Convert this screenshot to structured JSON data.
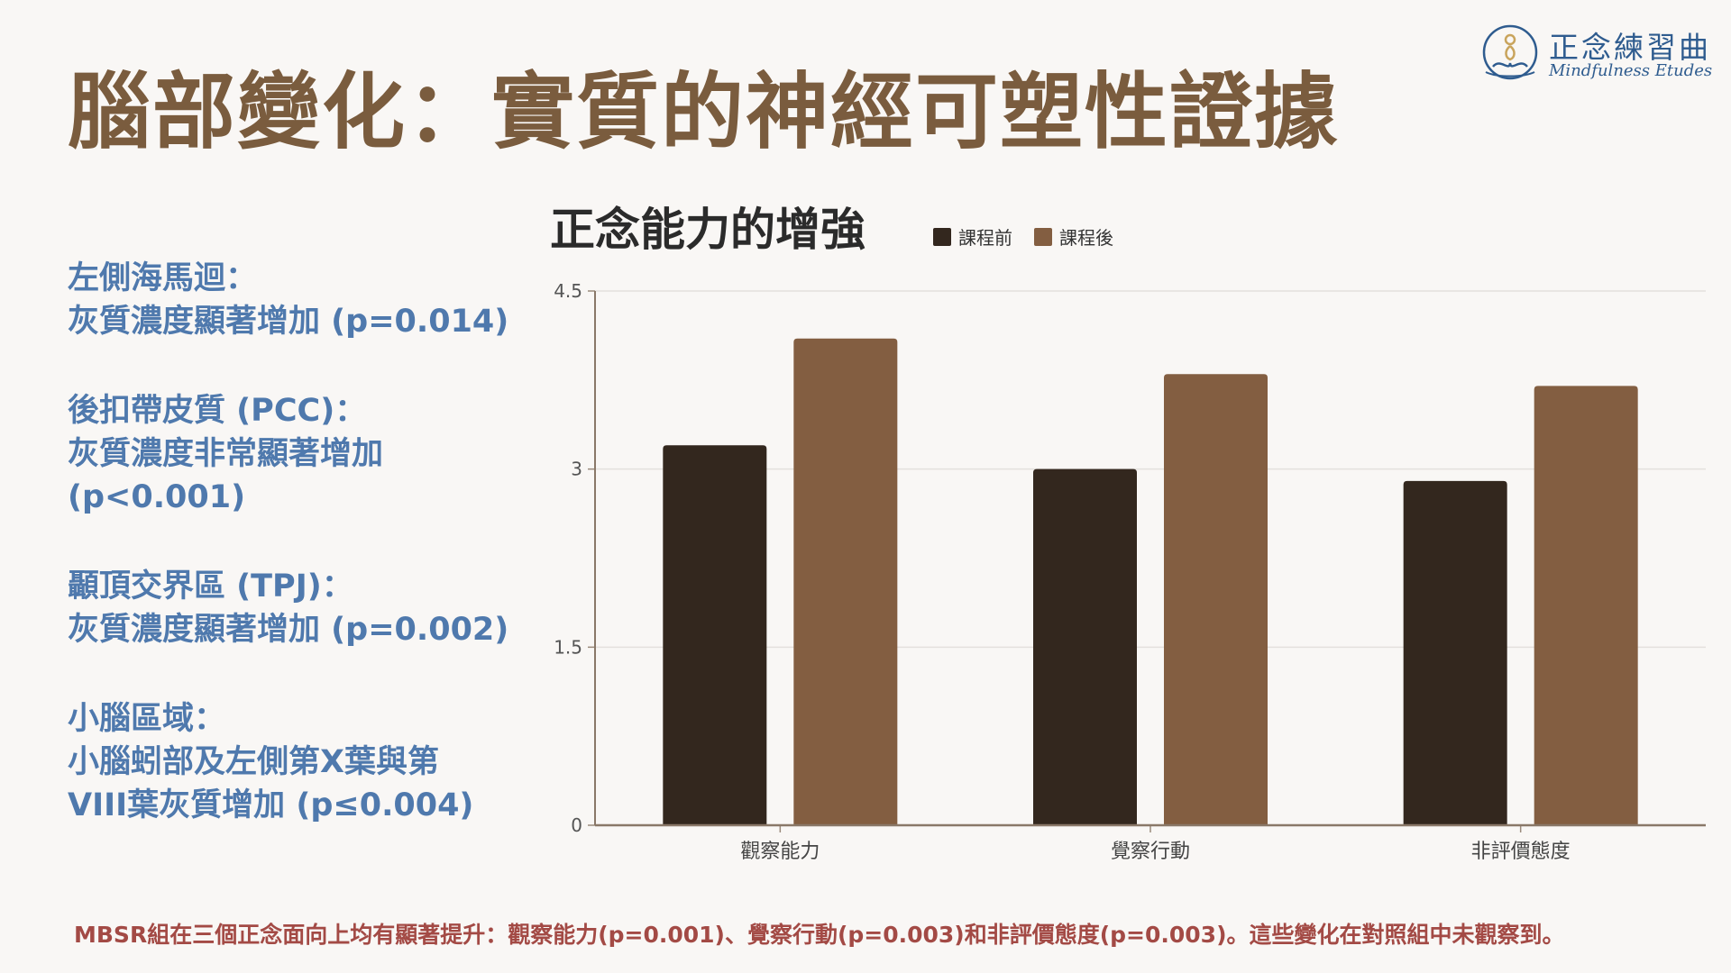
{
  "header": {
    "title": "腦部變化：實質的神經可塑性證據"
  },
  "logo": {
    "name": "正念練習曲",
    "subtitle": "Mindfulness Etudes"
  },
  "findings": [
    {
      "heading": "左側海馬迴：",
      "lines": [
        "灰質濃度顯著增加 (p=0.014)"
      ]
    },
    {
      "heading": "後扣帶皮質 (PCC)：",
      "lines": [
        "灰質濃度非常顯著增加",
        "(p<0.001)"
      ]
    },
    {
      "heading": "顳頂交界區 (TPJ)：",
      "lines": [
        "灰質濃度顯著增加 (p=0.002)"
      ]
    },
    {
      "heading": "小腦區域：",
      "lines": [
        "小腦蚓部及左側第X葉與第",
        "VIII葉灰質增加 (p≤0.004)"
      ]
    }
  ],
  "chart_data": {
    "type": "bar",
    "title": "正念能力的增強",
    "categories": [
      "觀察能力",
      "覺察行動",
      "非評價態度"
    ],
    "series": [
      {
        "name": "課程前",
        "values": [
          3.2,
          3.0,
          2.9
        ],
        "color": "#33271e"
      },
      {
        "name": "課程後",
        "values": [
          4.1,
          3.8,
          3.7
        ],
        "color": "#835e41"
      }
    ],
    "ylim": [
      0,
      4.5
    ],
    "yticks": [
      0,
      1.5,
      3,
      4.5
    ],
    "ytick_labels": [
      "0",
      "1.5",
      "3",
      "4.5"
    ],
    "grid": true,
    "legend_position": "top"
  },
  "footnote": "MBSR組在三個正念面向上均有顯著提升：觀察能力(p=0.001)、覺察行動(p=0.003)和非評價態度(p=0.003)。這些變化在對照組中未觀察到。"
}
